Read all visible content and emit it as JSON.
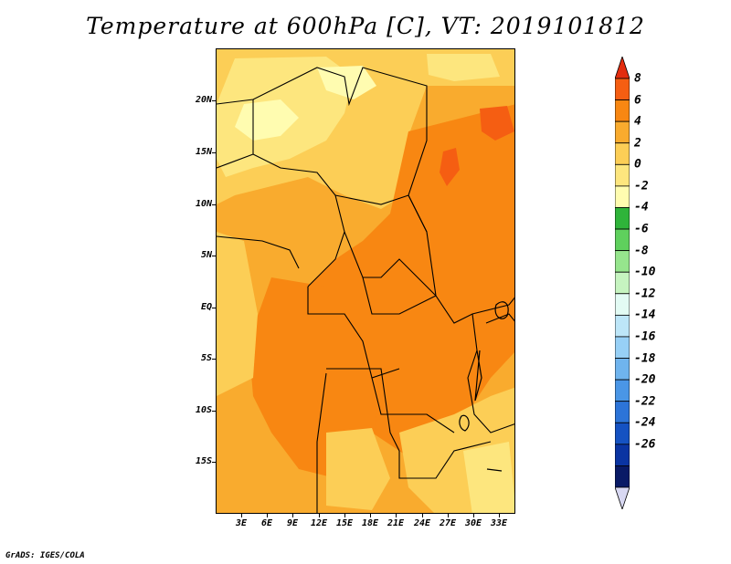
{
  "title": "Temperature at 600hPa [C], VT: 2019101812",
  "credit": "GrADS: IGES/COLA",
  "map": {
    "lat_labels": [
      "20N",
      "15N",
      "10N",
      "5N",
      "EQ",
      "5S",
      "10S",
      "15S"
    ],
    "lon_labels": [
      "3E",
      "6E",
      "9E",
      "12E",
      "15E",
      "18E",
      "21E",
      "24E",
      "27E",
      "30E",
      "33E"
    ]
  },
  "colorbar": {
    "labels": [
      "8",
      "6",
      "4",
      "2",
      "0",
      "-2",
      "-4",
      "-6",
      "-8",
      "-10",
      "-12",
      "-14",
      "-16",
      "-18",
      "-20",
      "-22",
      "-24",
      "-26"
    ],
    "colors": [
      "#e32c0e",
      "#f55e12",
      "#f88712",
      "#f9ab2e",
      "#fcce56",
      "#fde67e",
      "#fffcb0",
      "#2fb43a",
      "#5fd05d",
      "#96e58d",
      "#c6f4c0",
      "#e3fbf4",
      "#bde6f8",
      "#97d0f6",
      "#6fb4ee",
      "#4a96e6",
      "#2c74d8",
      "#1552c2",
      "#0a34a2",
      "#091a66",
      "#d8d8f2"
    ]
  }
}
